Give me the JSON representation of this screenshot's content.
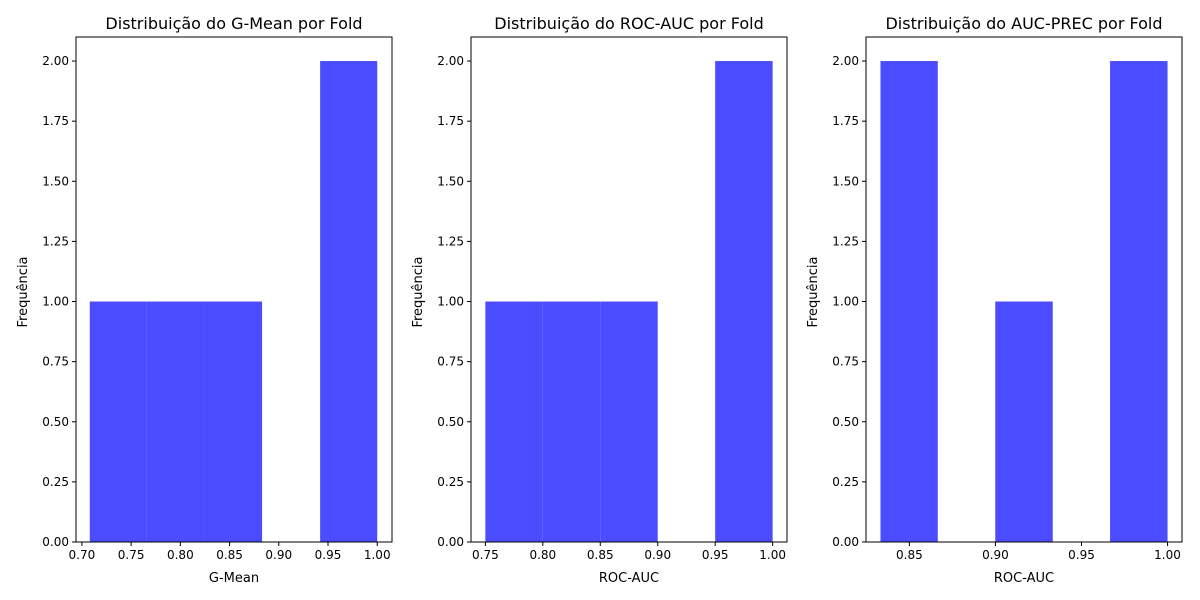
{
  "chart_data": [
    {
      "type": "bar",
      "title": "Distribuição do G-Mean por Fold",
      "xlabel": "G-Mean",
      "ylabel": "Frequência",
      "xlim": [
        0.694,
        1.015
      ],
      "ylim": [
        0,
        2.1
      ],
      "xticks": [
        0.7,
        0.75,
        0.8,
        0.85,
        0.9,
        0.95,
        1.0
      ],
      "xtick_labels": [
        "0.70",
        "0.75",
        "0.80",
        "0.85",
        "0.90",
        "0.95",
        "1.00"
      ],
      "yticks": [
        0,
        0.25,
        0.5,
        0.75,
        1.0,
        1.25,
        1.5,
        1.75,
        2.0
      ],
      "ytick_labels": [
        "0.00",
        "0.25",
        "0.50",
        "0.75",
        "1.00",
        "1.25",
        "1.50",
        "1.75",
        "2.00"
      ],
      "bins": [
        {
          "x0": 0.708,
          "x1": 0.766,
          "count": 1
        },
        {
          "x0": 0.766,
          "x1": 0.825,
          "count": 1
        },
        {
          "x0": 0.825,
          "x1": 0.883,
          "count": 1
        },
        {
          "x0": 0.883,
          "x1": 0.942,
          "count": 0
        },
        {
          "x0": 0.942,
          "x1": 1.0,
          "count": 2
        }
      ],
      "color": "#4b4bff",
      "grid": false
    },
    {
      "type": "bar",
      "title": "Distribuição do ROC-AUC por Fold",
      "xlabel": "ROC-AUC",
      "ylabel": "Frequência",
      "xlim": [
        0.7375,
        1.0125
      ],
      "ylim": [
        0,
        2.1
      ],
      "xticks": [
        0.75,
        0.8,
        0.85,
        0.9,
        0.95,
        1.0
      ],
      "xtick_labels": [
        "0.75",
        "0.80",
        "0.85",
        "0.90",
        "0.95",
        "1.00"
      ],
      "yticks": [
        0,
        0.25,
        0.5,
        0.75,
        1.0,
        1.25,
        1.5,
        1.75,
        2.0
      ],
      "ytick_labels": [
        "0.00",
        "0.25",
        "0.50",
        "0.75",
        "1.00",
        "1.25",
        "1.50",
        "1.75",
        "2.00"
      ],
      "bins": [
        {
          "x0": 0.75,
          "x1": 0.8,
          "count": 1
        },
        {
          "x0": 0.8,
          "x1": 0.85,
          "count": 1
        },
        {
          "x0": 0.85,
          "x1": 0.9,
          "count": 1
        },
        {
          "x0": 0.9,
          "x1": 0.95,
          "count": 0
        },
        {
          "x0": 0.95,
          "x1": 1.0,
          "count": 2
        }
      ],
      "color": "#4b4bff",
      "grid": false
    },
    {
      "type": "bar",
      "title": "Distribuição do AUC-PREC por Fold",
      "xlabel": "ROC-AUC",
      "ylabel": "Frequência",
      "xlim": [
        0.8248,
        1.0084
      ],
      "ylim": [
        0,
        2.1
      ],
      "xticks": [
        0.85,
        0.9,
        0.95,
        1.0
      ],
      "xtick_labels": [
        "0.85",
        "0.90",
        "0.95",
        "1.00"
      ],
      "yticks": [
        0,
        0.25,
        0.5,
        0.75,
        1.0,
        1.25,
        1.5,
        1.75,
        2.0
      ],
      "ytick_labels": [
        "0.00",
        "0.25",
        "0.50",
        "0.75",
        "1.00",
        "1.25",
        "1.50",
        "1.75",
        "2.00"
      ],
      "bins": [
        {
          "x0": 0.8332,
          "x1": 0.8665,
          "count": 2
        },
        {
          "x0": 0.8665,
          "x1": 0.8999,
          "count": 0
        },
        {
          "x0": 0.8999,
          "x1": 0.9333,
          "count": 1
        },
        {
          "x0": 0.9333,
          "x1": 0.9666,
          "count": 0
        },
        {
          "x0": 0.9666,
          "x1": 1.0,
          "count": 2
        }
      ],
      "color": "#4b4bff",
      "grid": false
    }
  ]
}
